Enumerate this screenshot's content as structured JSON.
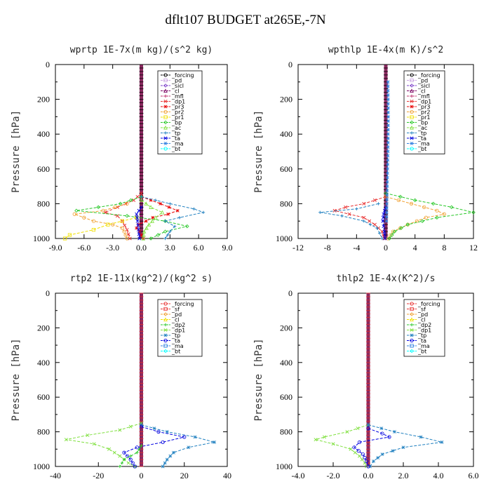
{
  "title": "dflt107  BUDGET at265E,-7N",
  "chart_data": [
    {
      "type": "line",
      "title": "wprtp  1E-7x(m kg)/(s^2 kg)",
      "ylabel": "Pressure [hPa]",
      "ylim": [
        1000,
        0
      ],
      "yticks": [
        "0",
        "200",
        "400",
        "600",
        "800",
        "1000"
      ],
      "xlim": [
        -9,
        9
      ],
      "xticks": [
        -9,
        -6,
        -3,
        0,
        3,
        6,
        9
      ],
      "xtick_labels": [
        "-9.0",
        "-6.0",
        "-3.0",
        "0.0",
        "3.0",
        "6.0",
        "9.0"
      ],
      "legend": [
        "_forcing",
        "_pd",
        "_sicl",
        "_cl",
        "_mfl",
        "_dp1",
        "_pr3",
        "_pr2",
        "_pr1",
        "_bp",
        "_ac",
        "_tp",
        "_ta",
        "_ma",
        "_bt"
      ],
      "legend_colors": [
        "#000000",
        "#c8a0e0",
        "#7a3cc8",
        "#7a0060",
        "#c0306e",
        "#e83030",
        "#e80000",
        "#f0a030",
        "#f0e000",
        "#28c828",
        "#80e040",
        "#2080c0",
        "#0000e0",
        "#3080e0",
        "#00ffff"
      ],
      "series": [
        {
          "name": "_dp1",
          "p": [
            740,
            780,
            820,
            850,
            870,
            900,
            950,
            1000
          ],
          "x": [
            0,
            -0.8,
            -2.5,
            -3.8,
            -2.5,
            -2.0,
            -1.5,
            -1.2
          ]
        },
        {
          "name": "_pr3",
          "p": [
            760,
            800,
            840,
            860,
            880,
            900,
            920,
            940,
            960,
            1000
          ],
          "x": [
            0,
            2.0,
            3.8,
            2.8,
            1.2,
            0.5,
            -0.3,
            -0.5,
            -0.2,
            0.2
          ]
        },
        {
          "name": "_pr2",
          "p": [
            800,
            840,
            860,
            880,
            900,
            920,
            940,
            960,
            1000
          ],
          "x": [
            -1.5,
            -4.0,
            -7.0,
            -6.0,
            -5.0,
            -3.0,
            -2.0,
            -1.8,
            -1.5
          ]
        },
        {
          "name": "_pr1",
          "p": [
            880,
            920,
            950,
            980,
            1000
          ],
          "x": [
            -0.5,
            -3.5,
            -5.0,
            -7.5,
            -8.0
          ]
        },
        {
          "name": "_bp",
          "p": [
            760,
            800,
            820,
            840,
            870,
            900,
            930,
            960,
            1000
          ],
          "x": [
            0,
            -2.2,
            -4.5,
            -6.8,
            -1.5,
            2.5,
            4.8,
            2.5,
            1.0
          ]
        },
        {
          "name": "_ac",
          "p": [
            780,
            820,
            850,
            880,
            920,
            960,
            1000
          ],
          "x": [
            0,
            1.0,
            2.2,
            1.5,
            0.8,
            0.3,
            0.2
          ]
        },
        {
          "name": "_tp",
          "p": [
            760,
            800,
            830,
            850,
            880,
            900,
            930,
            960,
            1000
          ],
          "x": [
            0,
            3.0,
            5.5,
            6.5,
            4.0,
            2.5,
            3.5,
            3.0,
            2.5
          ]
        },
        {
          "name": "_ta",
          "p": [
            820,
            860,
            900,
            950,
            1000
          ],
          "x": [
            0,
            -0.5,
            -0.4,
            -0.3,
            -0.2
          ]
        }
      ]
    },
    {
      "type": "line",
      "title": "wpthlp  1E-4x(m K)/s^2",
      "ylabel": "Pressure [hPa]",
      "ylim": [
        1000,
        0
      ],
      "yticks": [
        "0",
        "200",
        "400",
        "600",
        "800",
        "1000"
      ],
      "xlim": [
        -12,
        12
      ],
      "xticks": [
        -12,
        -8,
        -4,
        0,
        4,
        8,
        12
      ],
      "xtick_labels": [
        "-12",
        "-8",
        "-4",
        "0",
        "4",
        "8",
        "12"
      ],
      "legend": [
        "_forcing",
        "_pd",
        "_sicl",
        "_cl",
        "_mfl",
        "_dp1",
        "_pr3",
        "_pr2",
        "_pr1",
        "_bp",
        "_ac",
        "_tp",
        "_ta",
        "_ma",
        "_bt"
      ],
      "legend_colors": [
        "#000000",
        "#c8a0e0",
        "#7a3cc8",
        "#7a0060",
        "#c0306e",
        "#e83030",
        "#e80000",
        "#f0a030",
        "#f0e000",
        "#28c828",
        "#80e040",
        "#2080c0",
        "#0000e0",
        "#3080e0",
        "#00ffff"
      ],
      "series": [
        {
          "name": "_dp1",
          "p": [
            760,
            800,
            820,
            840,
            860,
            880,
            920,
            960,
            1000
          ],
          "x": [
            0,
            -3.0,
            -5.5,
            -7.0,
            -5.0,
            -3.0,
            -1.5,
            -0.5,
            -0.2
          ]
        },
        {
          "name": "_pr2",
          "p": [
            760,
            800,
            840,
            860,
            880,
            920,
            960,
            1000
          ],
          "x": [
            0,
            3.5,
            7.0,
            8.0,
            5.5,
            3.0,
            1.0,
            0.3
          ]
        },
        {
          "name": "_bp",
          "p": [
            740,
            780,
            820,
            850,
            880,
            920,
            960,
            1000
          ],
          "x": [
            0,
            4.0,
            9.0,
            12.0,
            7.0,
            3.0,
            1.2,
            0.5
          ]
        },
        {
          "name": "_tp",
          "p": [
            800,
            830,
            850,
            870,
            900,
            940,
            1000
          ],
          "x": [
            -1.0,
            -4.0,
            -9.0,
            -6.0,
            -3.0,
            -1.2,
            -0.5
          ]
        },
        {
          "name": "_ta",
          "p": [
            820,
            860,
            900,
            960,
            1000
          ],
          "x": [
            0,
            -0.3,
            -0.4,
            -0.2,
            -0.1
          ]
        },
        {
          "name": "_ma",
          "p": [
            100,
            300,
            500,
            700,
            900
          ],
          "x": [
            0.3,
            0.35,
            0.3,
            0.2,
            0.1
          ]
        }
      ]
    },
    {
      "type": "line",
      "title": "rtp2  1E-11x(kg^2)/(kg^2 s)",
      "ylabel": "Pressure [hPa]",
      "ylim": [
        1000,
        0
      ],
      "yticks": [
        "0",
        "200",
        "400",
        "600",
        "800",
        "1000"
      ],
      "xlim": [
        -40,
        40
      ],
      "xticks": [
        -40,
        -20,
        0,
        20,
        40
      ],
      "xtick_labels": [
        "-40",
        "-20",
        "0",
        "20",
        "40"
      ],
      "legend": [
        "_forcing",
        "_sf",
        "_pd",
        "_cl",
        "_dp2",
        "_dp1",
        "_tp",
        "_ta",
        "_ma",
        "_bt"
      ],
      "legend_colors": [
        "#e83030",
        "#e83030",
        "#f0a030",
        "#f0e000",
        "#28c828",
        "#80e040",
        "#2080c0",
        "#0000e0",
        "#3080e0",
        "#00ffff"
      ],
      "series": [
        {
          "name": "_dp1",
          "p": [
            750,
            790,
            820,
            845,
            870,
            900,
            940,
            980,
            1000
          ],
          "x": [
            0,
            -10,
            -25,
            -35,
            -22,
            -15,
            -10,
            -6,
            -3
          ]
        },
        {
          "name": "_tp",
          "p": [
            760,
            800,
            830,
            860,
            890,
            920,
            960,
            1000
          ],
          "x": [
            0,
            12,
            25,
            34,
            22,
            15,
            12,
            10
          ]
        },
        {
          "name": "_ta",
          "p": [
            770,
            800,
            830,
            860,
            890,
            920,
            960,
            1000
          ],
          "x": [
            0,
            8,
            20,
            10,
            -2,
            -8,
            -5,
            -3
          ]
        },
        {
          "name": "_dp2",
          "p": [
            880,
            920,
            960,
            1000
          ],
          "x": [
            0,
            -2,
            -8,
            -10
          ]
        }
      ]
    },
    {
      "type": "line",
      "title": "thlp2  1E-4x(K^2)/s",
      "ylabel": "Pressure [hPa]",
      "ylim": [
        1000,
        0
      ],
      "yticks": [
        "0",
        "200",
        "400",
        "600",
        "800",
        "1000"
      ],
      "xlim": [
        -4,
        6
      ],
      "xticks": [
        -4,
        -2,
        0,
        2,
        4,
        6
      ],
      "xtick_labels": [
        "-4.0",
        "-2.0",
        "0.0",
        "2.0",
        "4.0",
        "6.0"
      ],
      "legend": [
        "_forcing",
        "_sf",
        "_pd",
        "_cl",
        "_dp2",
        "_dp1",
        "_tp",
        "_ta",
        "_ma",
        "_bt"
      ],
      "legend_colors": [
        "#e83030",
        "#e83030",
        "#f0a030",
        "#f0e000",
        "#28c828",
        "#80e040",
        "#2080c0",
        "#0000e0",
        "#3080e0",
        "#00ffff"
      ],
      "series": [
        {
          "name": "_dp1",
          "p": [
            760,
            800,
            830,
            845,
            870,
            900,
            940,
            980,
            1000
          ],
          "x": [
            0,
            -1.2,
            -2.5,
            -3.0,
            -2.0,
            -1.0,
            -0.5,
            -0.2,
            -0.1
          ]
        },
        {
          "name": "_tp",
          "p": [
            760,
            800,
            830,
            860,
            890,
            930,
            970,
            1000
          ],
          "x": [
            0,
            1.5,
            3.0,
            4.2,
            2.0,
            0.8,
            0.3,
            0.1
          ]
        },
        {
          "name": "_ta",
          "p": [
            780,
            810,
            830,
            860,
            890,
            930,
            970,
            1000
          ],
          "x": [
            0,
            0.8,
            1.2,
            -0.5,
            -0.8,
            -0.3,
            -0.1,
            0
          ]
        }
      ]
    }
  ]
}
